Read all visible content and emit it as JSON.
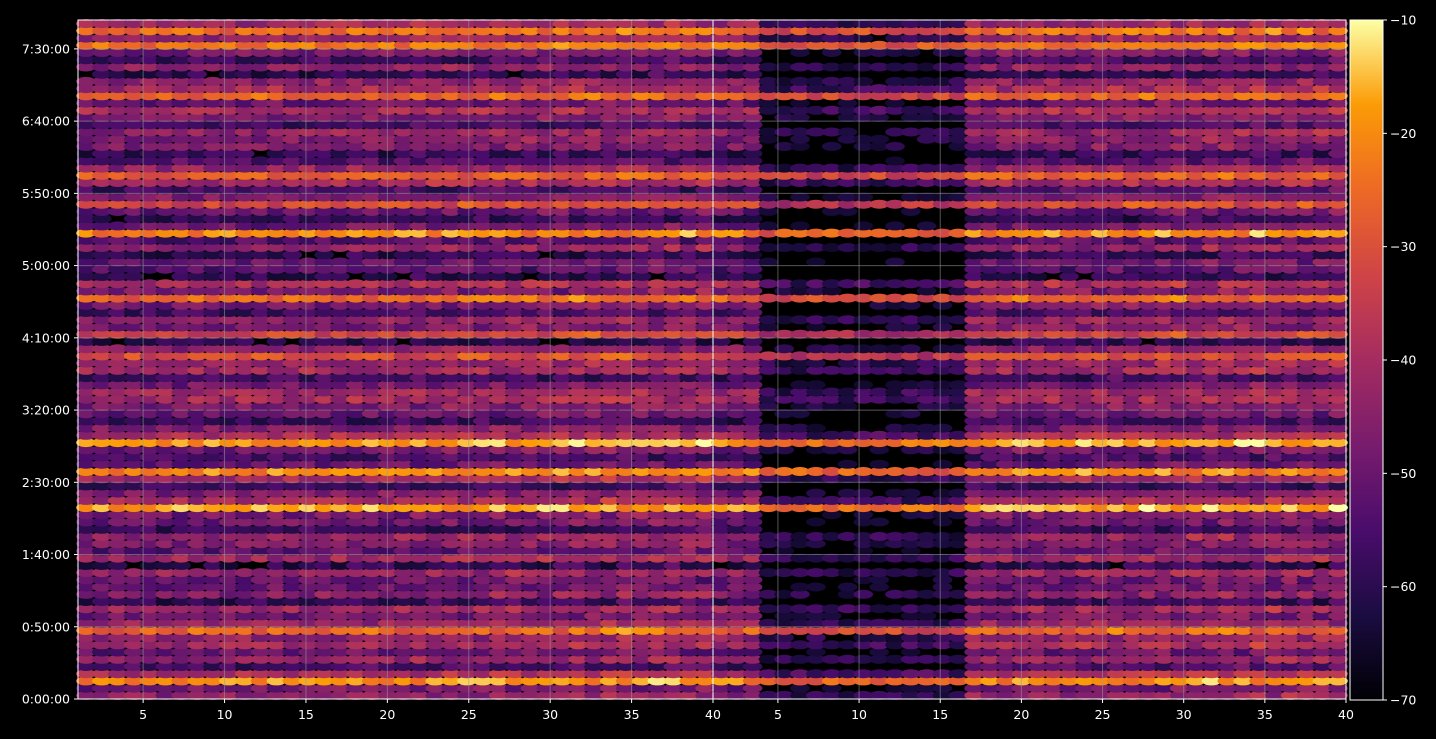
{
  "chart_data": [
    {
      "type": "heatmap",
      "panel": "left",
      "xlim": [
        1,
        40
      ],
      "ylim_seconds": [
        0,
        28200
      ],
      "x_ticks": [
        "5",
        "10",
        "15",
        "20",
        "25",
        "30",
        "35",
        "40"
      ],
      "x_tick_values": [
        5,
        10,
        15,
        20,
        25,
        30,
        35,
        40
      ],
      "y_ticks": [
        "0:00:00",
        "0:50:00",
        "1:40:00",
        "2:30:00",
        "3:20:00",
        "4:10:00",
        "5:00:00",
        "5:50:00",
        "6:40:00",
        "7:30:00"
      ],
      "y_tick_values_seconds": [
        0,
        3000,
        6000,
        9000,
        12000,
        15000,
        18000,
        21000,
        24000,
        27000
      ],
      "grid": true,
      "row_profile_seconds_to_level": "rows of elliptical cells every ~300s; brightest rows near 0:20:00, 2:00:00, 2:25:00, 5:00:00, 7:30:00"
    },
    {
      "type": "heatmap",
      "panel": "right",
      "xlim": [
        1,
        40
      ],
      "ylim_seconds": [
        0,
        28200
      ],
      "x_ticks": [
        "5",
        "10",
        "15",
        "20",
        "25",
        "30",
        "35",
        "40"
      ],
      "x_tick_values": [
        5,
        10,
        15,
        20,
        25,
        30,
        35,
        40
      ],
      "grid": true
    }
  ],
  "colorbar": {
    "colormap": "inferno",
    "range": [
      -70,
      -10
    ],
    "ticks": [
      "−70",
      "−60",
      "−50",
      "−40",
      "−30",
      "−20",
      "−10"
    ],
    "tick_values": [
      -70,
      -60,
      -50,
      -40,
      -30,
      -20,
      -10
    ]
  },
  "colors": {
    "background": "#000000",
    "text": "#ffffff",
    "grid": "#9a9a9a"
  }
}
